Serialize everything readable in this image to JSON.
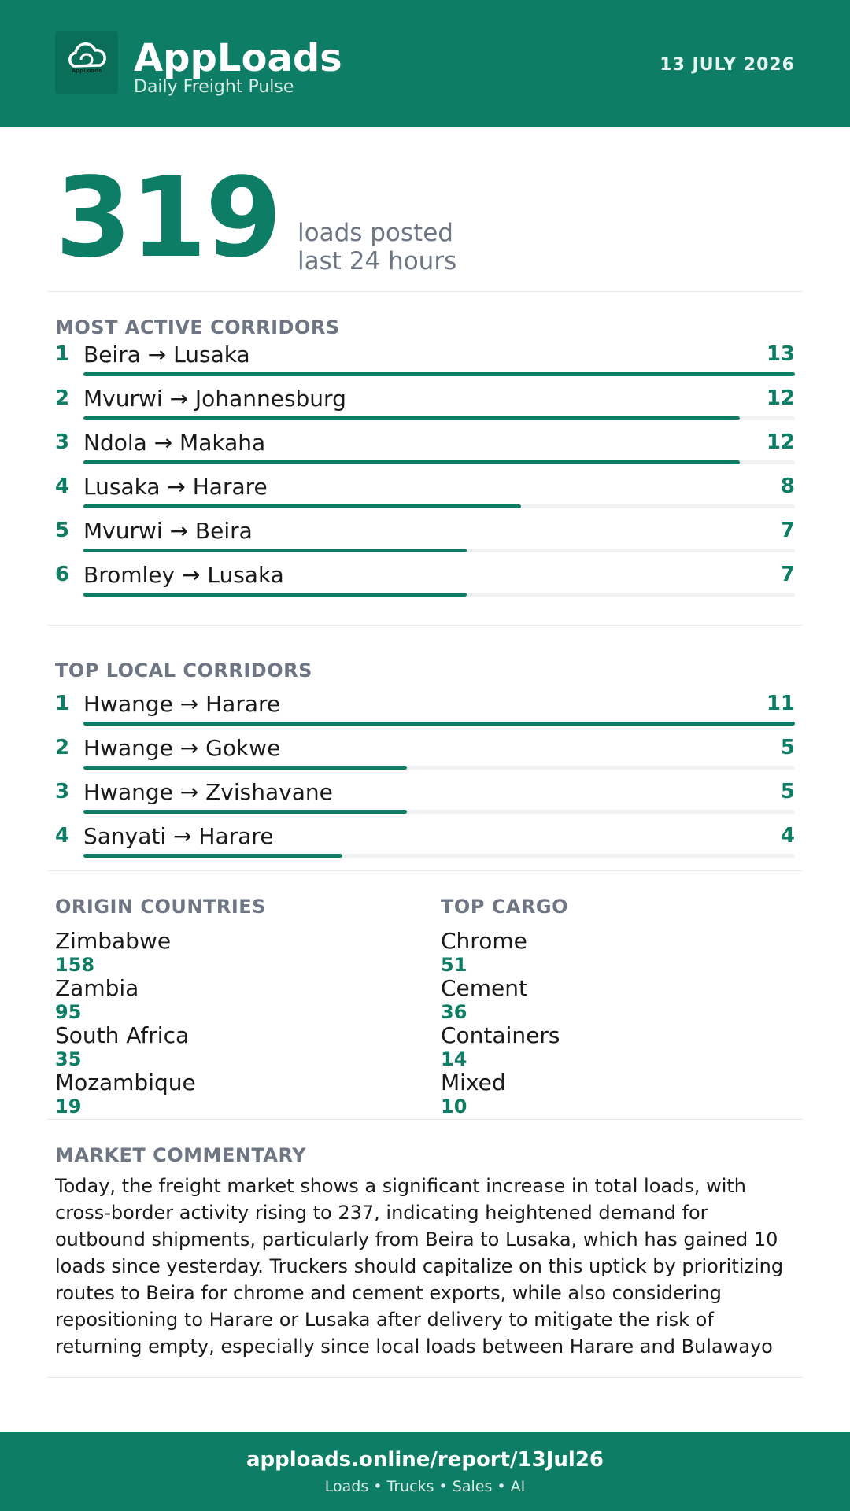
{
  "header": {
    "app_title": "AppLoads",
    "subtitle": "Daily Freight Pulse",
    "date": "13 JULY 2026",
    "logo_text": "AppLoads",
    "logo_icon": "cloud-icon",
    "brand_color": "#0e7d65"
  },
  "hero": {
    "value": "319",
    "label_line1": "loads posted",
    "label_line2": "last 24 hours"
  },
  "most_active": {
    "title": "MOST ACTIVE CORRIDORS",
    "max": 13,
    "items": [
      {
        "rank": "1",
        "route": "Beira → Lusaka",
        "count": "13",
        "value": 13
      },
      {
        "rank": "2",
        "route": "Mvurwi → Johannesburg",
        "count": "12",
        "value": 12
      },
      {
        "rank": "3",
        "route": "Ndola → Makaha",
        "count": "12",
        "value": 12
      },
      {
        "rank": "4",
        "route": "Lusaka → Harare",
        "count": "8",
        "value": 8
      },
      {
        "rank": "5",
        "route": "Mvurwi → Beira",
        "count": "7",
        "value": 7
      },
      {
        "rank": "6",
        "route": "Bromley → Lusaka",
        "count": "7",
        "value": 7
      }
    ]
  },
  "top_local": {
    "title": "TOP LOCAL CORRIDORS",
    "max": 11,
    "items": [
      {
        "rank": "1",
        "route": "Hwange → Harare",
        "count": "11",
        "value": 11
      },
      {
        "rank": "2",
        "route": "Hwange → Gokwe",
        "count": "5",
        "value": 5
      },
      {
        "rank": "3",
        "route": "Hwange → Zvishavane",
        "count": "5",
        "value": 5
      },
      {
        "rank": "4",
        "route": "Sanyati → Harare",
        "count": "4",
        "value": 4
      }
    ]
  },
  "origin_countries": {
    "title": "ORIGIN COUNTRIES",
    "items": [
      {
        "name": "Zimbabwe",
        "value": "158"
      },
      {
        "name": "Zambia",
        "value": "95"
      },
      {
        "name": "South Africa",
        "value": "35"
      },
      {
        "name": "Mozambique",
        "value": "19"
      }
    ]
  },
  "top_cargo": {
    "title": "TOP CARGO",
    "items": [
      {
        "name": "Chrome",
        "value": "51"
      },
      {
        "name": "Cement",
        "value": "36"
      },
      {
        "name": "Containers",
        "value": "14"
      },
      {
        "name": "Mixed",
        "value": "10"
      }
    ]
  },
  "commentary": {
    "title": "MARKET COMMENTARY",
    "text": "Today, the freight market shows a significant increase in total loads, with cross-border activity rising to 237, indicating heightened demand for outbound shipments, particularly from Beira to Lusaka, which has gained 10 loads since yesterday. Truckers should capitalize on this uptick by prioritizing routes to Beira for chrome and cement exports, while also considering repositioning to Harare or Lusaka after delivery to mitigate the risk of returning empty, especially since local loads between Harare and Bulawayo"
  },
  "footer": {
    "url": "apploads.online/report/13Jul26",
    "tagline": "Loads • Trucks • Sales • AI"
  }
}
